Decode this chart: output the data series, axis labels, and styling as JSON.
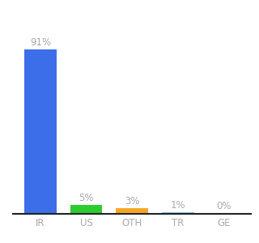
{
  "categories": [
    "IR",
    "US",
    "OTH",
    "TR",
    "GE"
  ],
  "values": [
    91,
    5,
    3,
    1,
    0.2
  ],
  "bar_colors": [
    "#3d6eea",
    "#2ecc2e",
    "#f5a623",
    "#7ec8e3",
    "#b0c4de"
  ],
  "labels": [
    "91%",
    "5%",
    "3%",
    "1%",
    "0%"
  ],
  "background_color": "#ffffff",
  "ylim": [
    0,
    105
  ],
  "label_fontsize": 8.5,
  "tick_fontsize": 8.5,
  "label_color": "#aaaaaa"
}
